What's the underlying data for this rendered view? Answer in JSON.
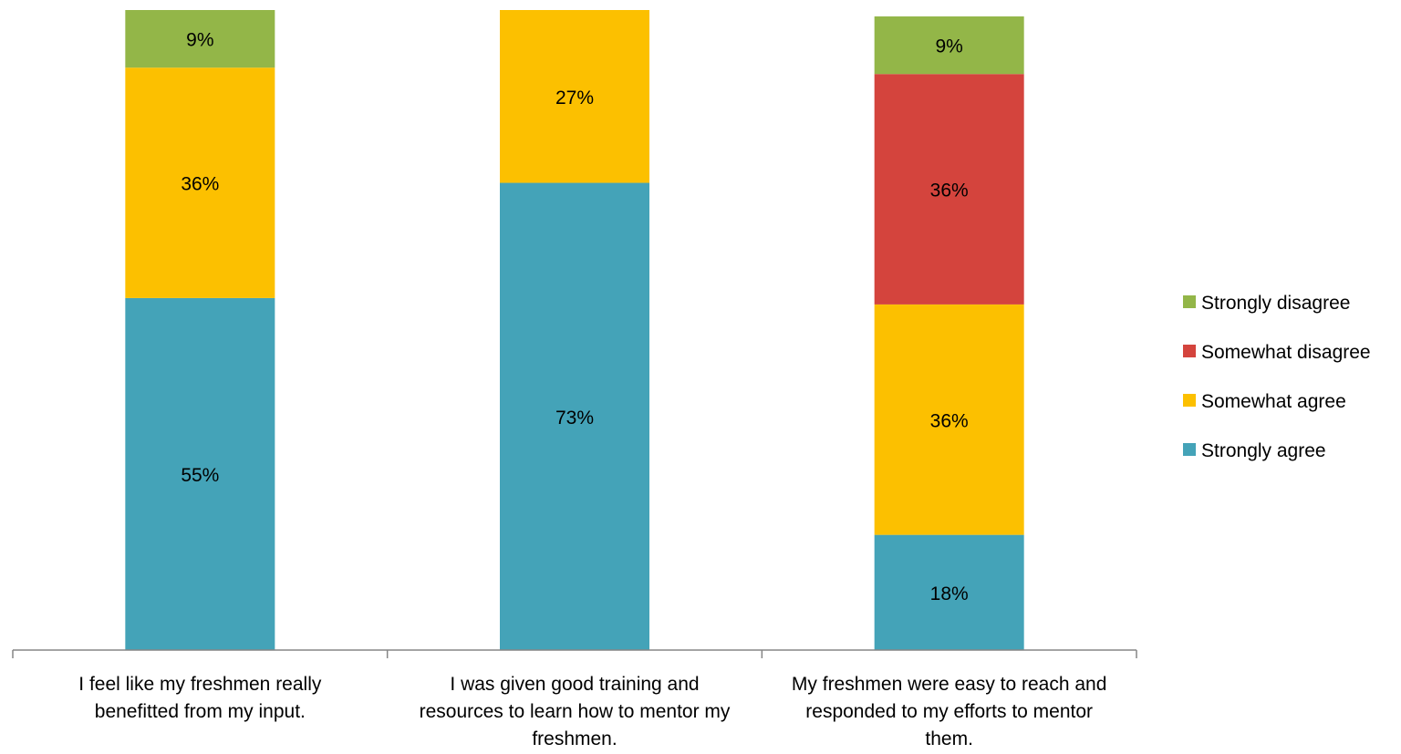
{
  "chart_data": {
    "type": "bar",
    "stacked": true,
    "percent_stacked": true,
    "categories": [
      [
        "I feel like my freshmen really",
        "benefitted from my input."
      ],
      [
        "I was given good training and",
        "resources to learn how to mentor my",
        "freshmen."
      ],
      [
        "My freshmen were easy to reach and",
        "responded to my efforts to mentor",
        "them."
      ]
    ],
    "series": [
      {
        "name": "Strongly agree",
        "color": "#44A3B8",
        "values": [
          55,
          73,
          18
        ]
      },
      {
        "name": "Somewhat agree",
        "color": "#FCC000",
        "values": [
          36,
          27,
          36
        ]
      },
      {
        "name": "Somewhat disagree",
        "color": "#D4443D",
        "values": [
          0,
          0,
          36
        ]
      },
      {
        "name": "Strongly disagree",
        "color": "#93B648",
        "values": [
          9,
          0,
          9
        ]
      }
    ],
    "legend_position": "right",
    "legend_order": [
      "Strongly disagree",
      "Somewhat disagree",
      "Somewhat agree",
      "Strongly agree"
    ],
    "ylim": [
      0,
      100
    ],
    "grid": false,
    "value_suffix": "%"
  }
}
